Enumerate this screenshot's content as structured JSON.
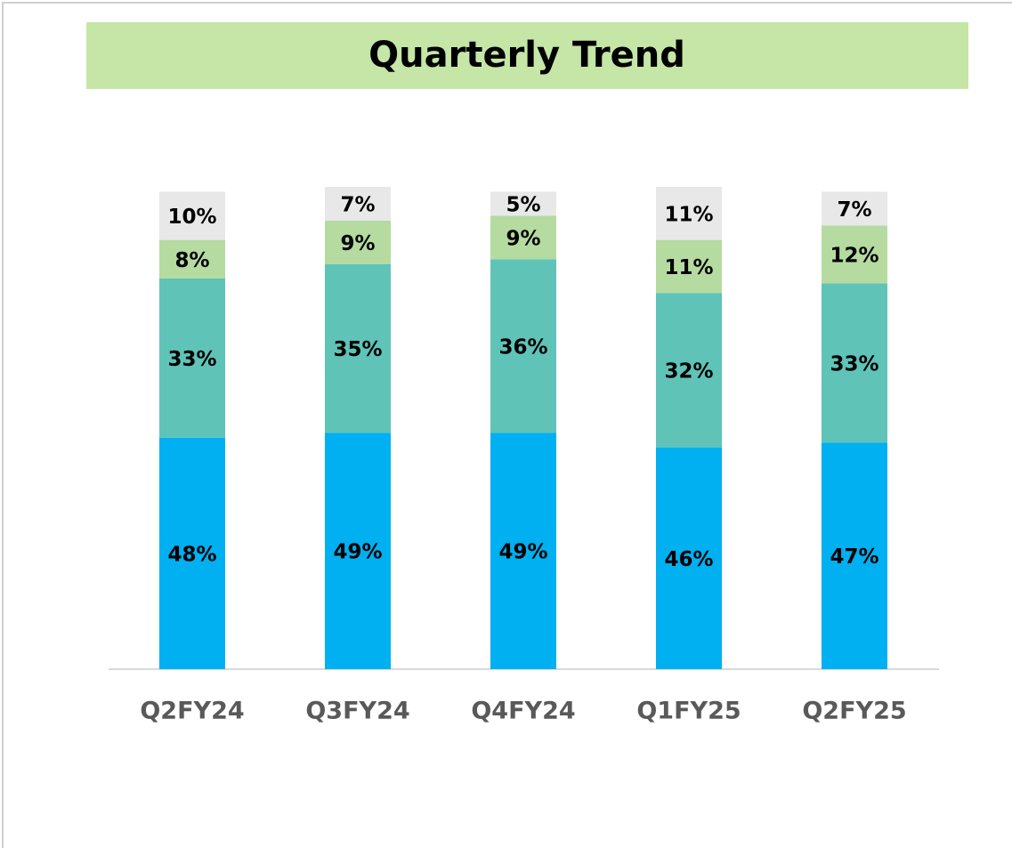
{
  "chart_data": {
    "type": "stacked_bar",
    "title": "Quarterly Trend",
    "categories": [
      "Q2FY24",
      "Q3FY24",
      "Q4FY24",
      "Q1FY25",
      "Q2FY25"
    ],
    "series": [
      {
        "color": "#00b0f0",
        "values": [
          48,
          49,
          49,
          46,
          47
        ],
        "value_labels": [
          "48%",
          "49%",
          "49%",
          "46%",
          "47%"
        ]
      },
      {
        "color": "#5fc3b8",
        "values": [
          33,
          35,
          36,
          32,
          33
        ],
        "value_labels": [
          "33%",
          "35%",
          "36%",
          "32%",
          "33%"
        ]
      },
      {
        "color": "#b5dba0",
        "values": [
          8,
          9,
          9,
          11,
          12
        ],
        "value_labels": [
          "8%",
          "9%",
          "9%",
          "11%",
          "12%"
        ]
      },
      {
        "color": "#e8e8e8",
        "values": [
          10,
          7,
          5,
          11,
          7
        ],
        "value_labels": [
          "10%",
          "7%",
          "5%",
          "11%",
          "7%"
        ]
      }
    ]
  }
}
